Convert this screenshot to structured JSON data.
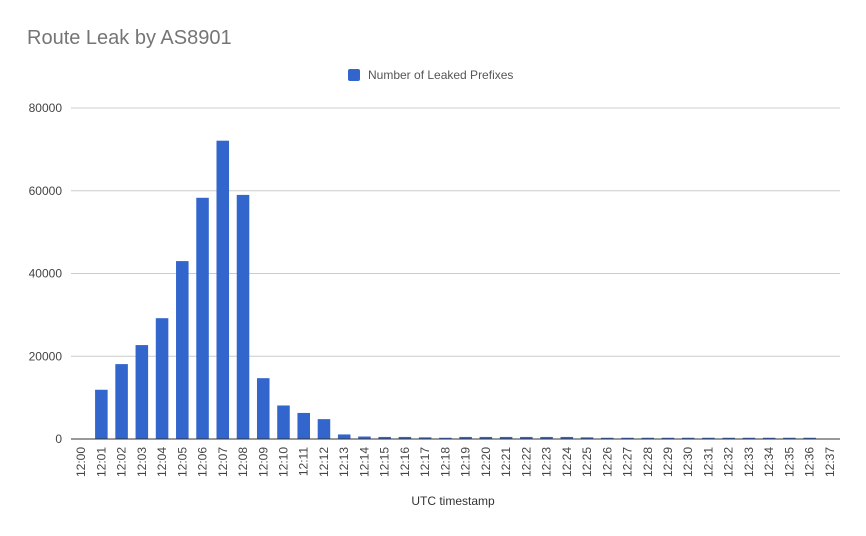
{
  "chart_data": {
    "type": "bar",
    "title": "Route Leak by AS8901",
    "xlabel": "UTC timestamp",
    "ylabel": "",
    "ylim": [
      0,
      80000
    ],
    "yticks": [
      0,
      20000,
      40000,
      60000,
      80000
    ],
    "grid": true,
    "legend_position": "top",
    "color": "#3366cc",
    "categories": [
      "12:00",
      "12:01",
      "12:02",
      "12:03",
      "12:04",
      "12:05",
      "12:06",
      "12:07",
      "12:08",
      "12:09",
      "12:10",
      "12:11",
      "12:12",
      "12:13",
      "12:14",
      "12:15",
      "12:16",
      "12:17",
      "12:18",
      "12:19",
      "12:20",
      "12:21",
      "12:22",
      "12:23",
      "12:24",
      "12:25",
      "12:26",
      "12:27",
      "12:28",
      "12:29",
      "12:30",
      "12:31",
      "12:32",
      "12:33",
      "12:34",
      "12:35",
      "12:36",
      "12:37"
    ],
    "series": [
      {
        "name": "Number of Leaked Prefixes",
        "values": [
          0,
          11900,
          18100,
          22700,
          29200,
          43000,
          58300,
          72100,
          59000,
          14700,
          8100,
          6300,
          4800,
          1100,
          600,
          500,
          500,
          400,
          300,
          500,
          500,
          500,
          500,
          500,
          500,
          400,
          300,
          300,
          300,
          300,
          300,
          300,
          300,
          300,
          300,
          300,
          300,
          0
        ]
      }
    ]
  }
}
